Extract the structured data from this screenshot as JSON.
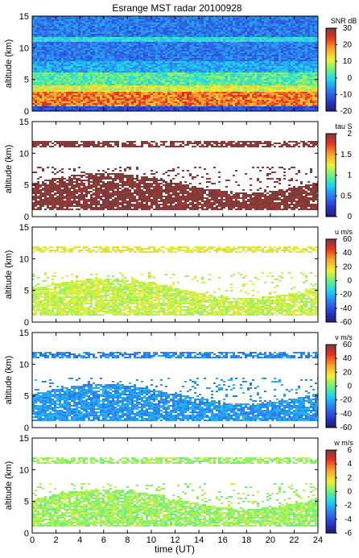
{
  "chart_data": {
    "type": "heatmap",
    "title": "Esrange MST radar 20100928",
    "xlabel": "time (UT)",
    "xlim": [
      0,
      24
    ],
    "x_ticks": [
      0,
      2,
      4,
      6,
      8,
      10,
      12,
      14,
      16,
      18,
      20,
      22,
      24
    ],
    "ylabel": "altitude (km)",
    "ylim": [
      0,
      15
    ],
    "y_ticks": [
      0,
      5,
      10,
      15
    ],
    "panels": [
      {
        "quantity": "SNR",
        "colorbar_label": "SNR dB",
        "clim": [
          -20,
          30
        ],
        "colorbar_ticks": [
          -20,
          -10,
          0,
          10,
          20,
          30
        ],
        "features": [
          {
            "altitude_km": [
              1,
              3
            ],
            "level_dB": 22
          },
          {
            "altitude_km": [
              4,
              6
            ],
            "level_dB": 5
          },
          {
            "altitude_km": [
              11,
              11.8
            ],
            "level_dB": 0
          },
          {
            "altitude_km": [
              6,
              15
            ],
            "level_dB": -8
          }
        ]
      },
      {
        "quantity": "tau",
        "colorbar_label": "tau S",
        "clim": [
          0,
          2
        ],
        "colorbar_ticks": [
          0,
          0.5,
          1,
          1.5,
          2
        ],
        "features": [
          {
            "altitude_km": [
              1.2,
              7
            ],
            "level_s": 2
          },
          {
            "altitude_km": [
              11,
              12
            ],
            "level_s": 2
          }
        ]
      },
      {
        "quantity": "u",
        "colorbar_label": "u m/s",
        "clim": [
          -60,
          60
        ],
        "colorbar_ticks": [
          -60,
          -40,
          -20,
          0,
          20,
          40,
          60
        ],
        "features": [
          {
            "altitude_km": [
              1.2,
              7
            ],
            "level_ms": 10
          },
          {
            "altitude_km": [
              11,
              12
            ],
            "level_ms": 15
          }
        ]
      },
      {
        "quantity": "v",
        "colorbar_label": "v m/s",
        "clim": [
          -60,
          60
        ],
        "colorbar_ticks": [
          -60,
          -40,
          -20,
          0,
          20,
          40,
          60
        ],
        "features": [
          {
            "altitude_km": [
              1.2,
              7
            ],
            "level_ms": -25
          },
          {
            "altitude_km": [
              11,
              12
            ],
            "level_ms": -28
          }
        ]
      },
      {
        "quantity": "w",
        "colorbar_label": "w m/s",
        "clim": [
          -6,
          6
        ],
        "colorbar_ticks": [
          -6,
          -4,
          -2,
          0,
          2,
          4,
          6
        ],
        "features": [
          {
            "altitude_km": [
              1.2,
              7
            ],
            "level_ms": 0.5
          },
          {
            "altitude_km": [
              11,
              12
            ],
            "level_ms": 0.5
          }
        ]
      }
    ]
  }
}
